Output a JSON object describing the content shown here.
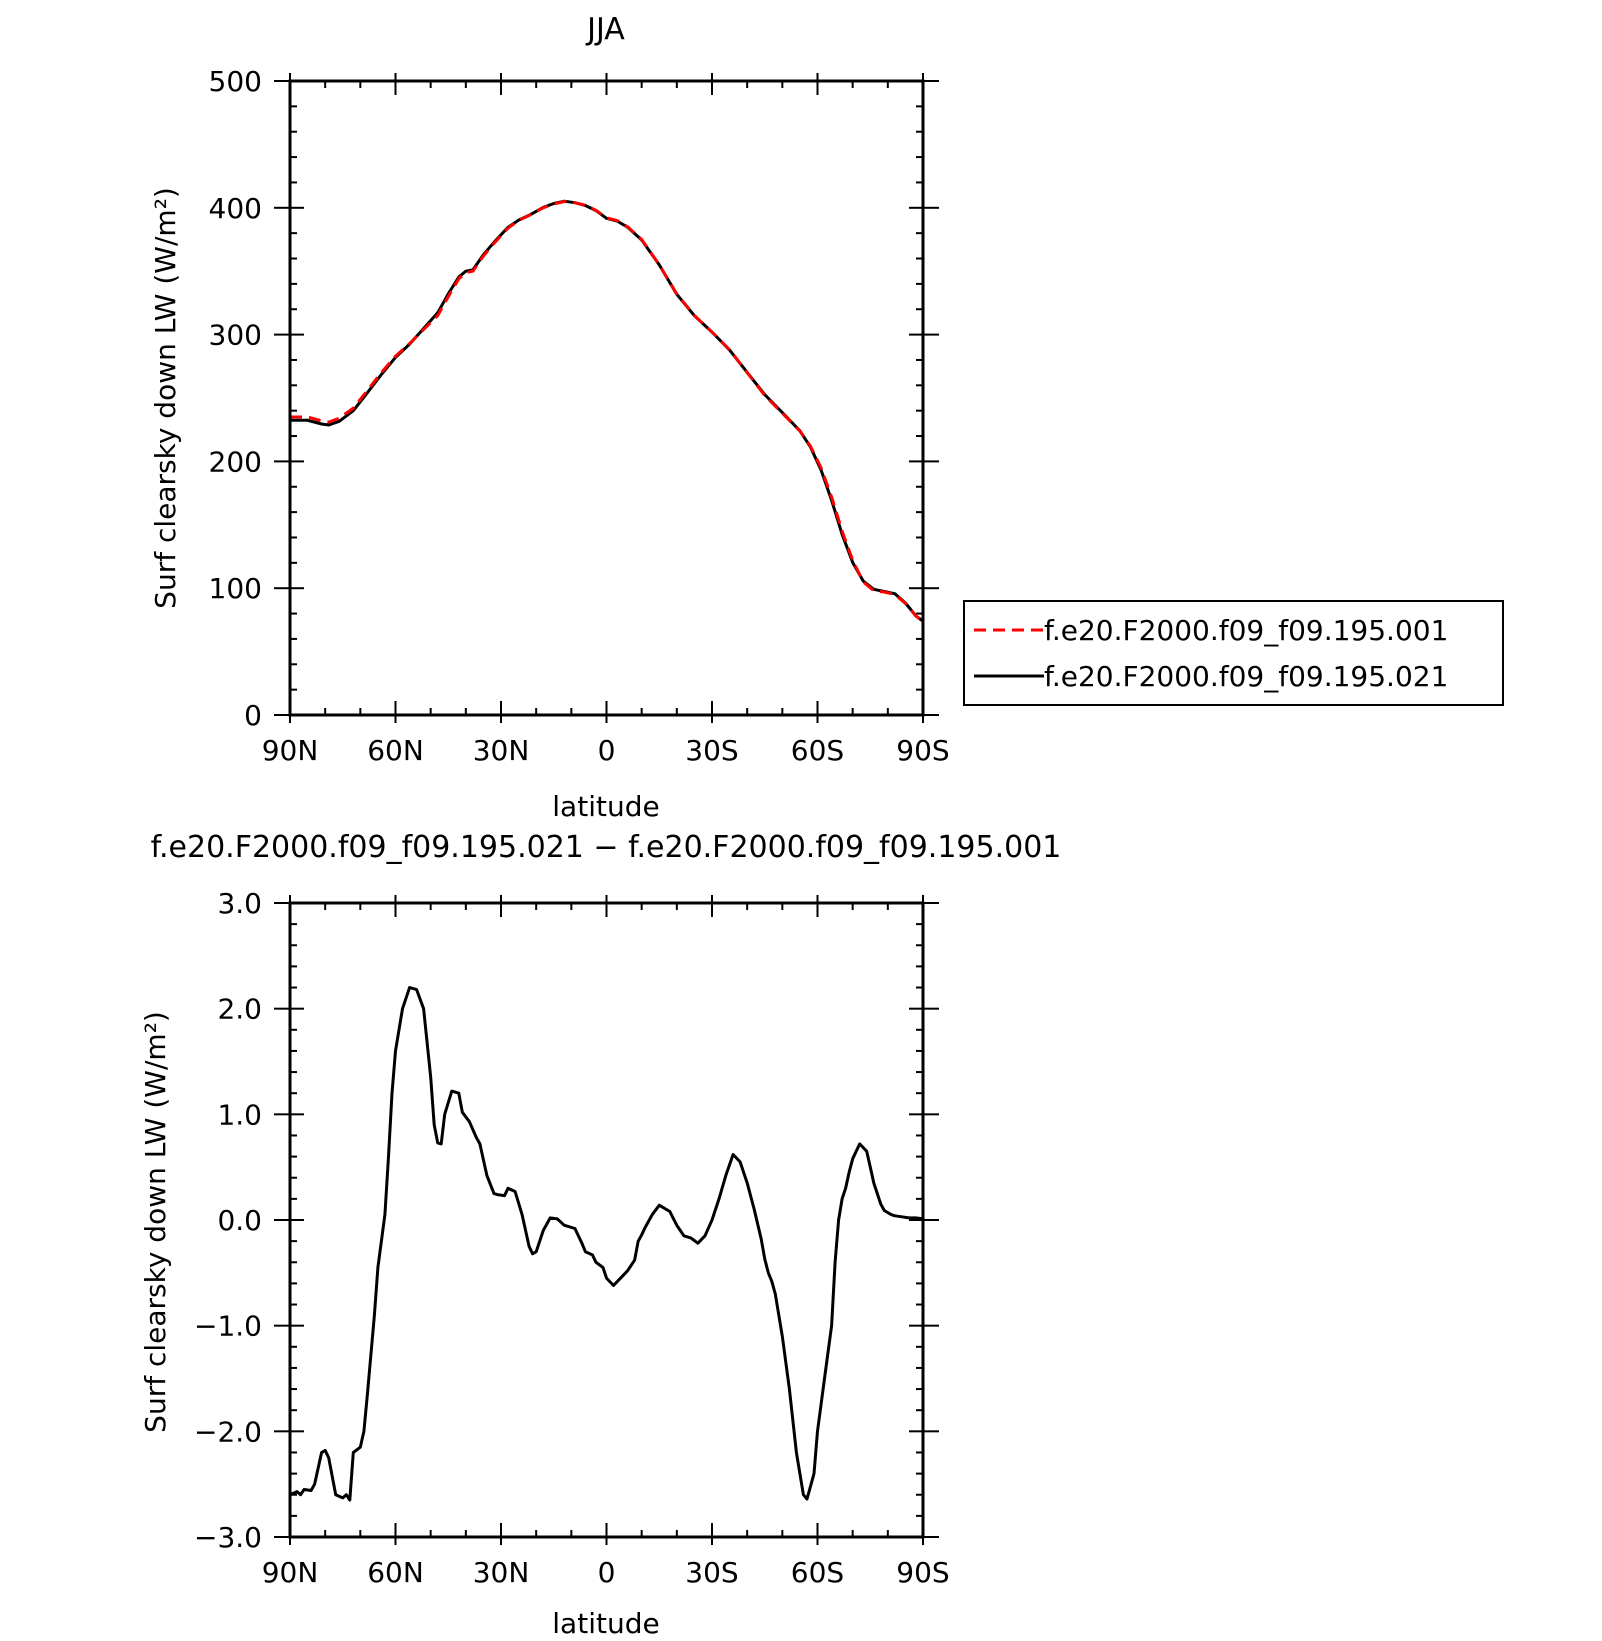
{
  "chart_data": [
    {
      "type": "line",
      "title": "JJA",
      "xlabel": "latitude",
      "ylabel": "Surf clearsky down LW (W/m²)",
      "xlim": [
        90,
        -90
      ],
      "ylim": [
        0,
        500
      ],
      "x_ticks": [
        90,
        60,
        30,
        0,
        -30,
        -60,
        -90
      ],
      "x_tick_labels": [
        "90N",
        "60N",
        "30N",
        "0",
        "30S",
        "60S",
        "90S"
      ],
      "y_ticks": [
        0,
        100,
        200,
        300,
        400,
        500
      ],
      "y_tick_labels": [
        "0",
        "100",
        "200",
        "300",
        "400",
        "500"
      ],
      "legend_position": "right",
      "series": [
        {
          "name": "f.e20.F2000.f09_f09.195.001",
          "color": "#ff0000",
          "dash": "dashed",
          "x": [
            90,
            85,
            81,
            79,
            76,
            72,
            68,
            64,
            60,
            56,
            52,
            48,
            45,
            42,
            40,
            38,
            35,
            32,
            28,
            25,
            22,
            18,
            15,
            12,
            9,
            6,
            3,
            0,
            -3,
            -6,
            -10,
            -15,
            -20,
            -25,
            -30,
            -35,
            -40,
            -45,
            -50,
            -55,
            -58,
            -61,
            -64,
            -67,
            -70,
            -73,
            -76,
            -79,
            -82,
            -85,
            -88,
            -90
          ],
          "y": [
            235,
            235,
            232,
            231,
            234,
            242,
            256,
            270,
            283,
            293,
            304,
            315,
            330,
            344,
            349,
            350,
            362,
            372,
            384,
            390,
            394,
            400,
            403,
            405,
            404,
            402,
            398,
            392,
            390,
            385,
            375,
            355,
            332,
            315,
            302,
            288,
            270,
            252,
            238,
            224,
            212,
            195,
            172,
            145,
            122,
            105,
            98,
            97,
            95,
            88,
            78,
            74
          ]
        },
        {
          "name": "f.e20.F2000.f09_f09.195.021",
          "color": "#000000",
          "dash": "solid",
          "x": [
            90,
            85,
            81,
            79,
            76,
            72,
            68,
            64,
            60,
            56,
            52,
            48,
            45,
            42,
            40,
            38,
            35,
            32,
            28,
            25,
            22,
            18,
            15,
            12,
            9,
            6,
            3,
            0,
            -3,
            -6,
            -10,
            -15,
            -20,
            -25,
            -30,
            -35,
            -40,
            -45,
            -50,
            -55,
            -58,
            -61,
            -64,
            -67,
            -70,
            -73,
            -76,
            -79,
            -82,
            -85,
            -88,
            -90
          ],
          "y": [
            232.4,
            232.4,
            229.5,
            228.7,
            231.6,
            240,
            254.2,
            268.6,
            282,
            292.5,
            304.8,
            317.2,
            332.2,
            345.4,
            350,
            351,
            363,
            372.8,
            384.6,
            390.3,
            394.1,
            400.3,
            403.4,
            405.2,
            404,
            401.8,
            397.8,
            391.7,
            389.6,
            384.7,
            374.6,
            355,
            331.8,
            314.9,
            302,
            287.8,
            270.2,
            252.6,
            238.6,
            224.1,
            211.3,
            193.3,
            169.3,
            142.5,
            120.3,
            105.7,
            99.1,
            97.4,
            95.7,
            88.3,
            78.1,
            74
          ]
        }
      ]
    },
    {
      "type": "line",
      "title": "f.e20.F2000.f09_f09.195.021 − f.e20.F2000.f09_f09.195.001",
      "xlabel": "latitude",
      "ylabel": "Surf clearsky down LW (W/m²)",
      "xlim": [
        90,
        -90
      ],
      "ylim": [
        -3.0,
        3.0
      ],
      "x_ticks": [
        90,
        60,
        30,
        0,
        -30,
        -60,
        -90
      ],
      "x_tick_labels": [
        "90N",
        "60N",
        "30N",
        "0",
        "30S",
        "60S",
        "90S"
      ],
      "y_ticks": [
        -3.0,
        -2.0,
        -1.0,
        0.0,
        1.0,
        2.0,
        3.0
      ],
      "y_tick_labels": [
        "−3.0",
        "−2.0",
        "−1.0",
        "0.0",
        "1.0",
        "2.0",
        "3.0"
      ],
      "series": [
        {
          "name": "",
          "color": "#000000",
          "dash": "solid",
          "x": [
            90,
            88,
            87,
            86,
            84,
            83,
            81,
            80,
            79,
            77,
            75,
            74,
            73,
            72,
            70,
            69,
            68,
            66,
            65,
            63,
            62,
            61,
            60,
            58,
            56,
            54,
            52,
            50,
            49,
            48,
            47,
            46,
            44,
            42,
            41,
            39,
            37,
            36,
            34,
            32,
            31,
            29,
            28,
            26,
            24,
            22,
            21,
            20,
            18,
            16,
            14,
            12,
            11,
            9,
            7,
            6,
            4,
            3,
            1,
            0,
            -2,
            -4,
            -6,
            -8,
            -9,
            -10,
            -11,
            -13,
            -15,
            -16,
            -18,
            -20,
            -21,
            -22,
            -24,
            -26,
            -28,
            -30,
            -32,
            -34,
            -36,
            -38,
            -40,
            -42,
            -44,
            -45,
            -46,
            -47,
            -48,
            -50,
            -52,
            -54,
            -56,
            -57,
            -59,
            -60,
            -62,
            -64,
            -65,
            -66,
            -67,
            -68,
            -69,
            -70,
            -72,
            -74,
            -75,
            -76,
            -77,
            -78,
            -79,
            -80,
            -81,
            -82,
            -84,
            -86,
            -88,
            -90
          ],
          "y": [
            -2.6,
            -2.57,
            -2.6,
            -2.55,
            -2.56,
            -2.5,
            -2.2,
            -2.18,
            -2.25,
            -2.6,
            -2.63,
            -2.6,
            -2.65,
            -2.2,
            -2.15,
            -2.0,
            -1.65,
            -0.9,
            -0.45,
            0.05,
            0.6,
            1.2,
            1.6,
            2.0,
            2.2,
            2.18,
            2.0,
            1.35,
            0.9,
            0.73,
            0.72,
            1.0,
            1.22,
            1.2,
            1.02,
            0.93,
            0.78,
            0.72,
            0.42,
            0.25,
            0.24,
            0.23,
            0.3,
            0.27,
            0.05,
            -0.25,
            -0.32,
            -0.3,
            -0.1,
            0.02,
            0.01,
            -0.05,
            -0.06,
            -0.08,
            -0.22,
            -0.3,
            -0.33,
            -0.4,
            -0.45,
            -0.55,
            -0.62,
            -0.55,
            -0.48,
            -0.38,
            -0.2,
            -0.14,
            -0.07,
            0.05,
            0.14,
            0.12,
            0.08,
            -0.05,
            -0.1,
            -0.15,
            -0.17,
            -0.22,
            -0.15,
            0.0,
            0.2,
            0.43,
            0.62,
            0.55,
            0.35,
            0.1,
            -0.18,
            -0.37,
            -0.5,
            -0.58,
            -0.7,
            -1.1,
            -1.6,
            -2.2,
            -2.6,
            -2.64,
            -2.4,
            -2.0,
            -1.5,
            -1.0,
            -0.4,
            0.0,
            0.2,
            0.3,
            0.45,
            0.58,
            0.72,
            0.65,
            0.5,
            0.35,
            0.25,
            0.15,
            0.09,
            0.07,
            0.05,
            0.04,
            0.03,
            0.02,
            0.02,
            0.01
          ]
        }
      ]
    }
  ]
}
